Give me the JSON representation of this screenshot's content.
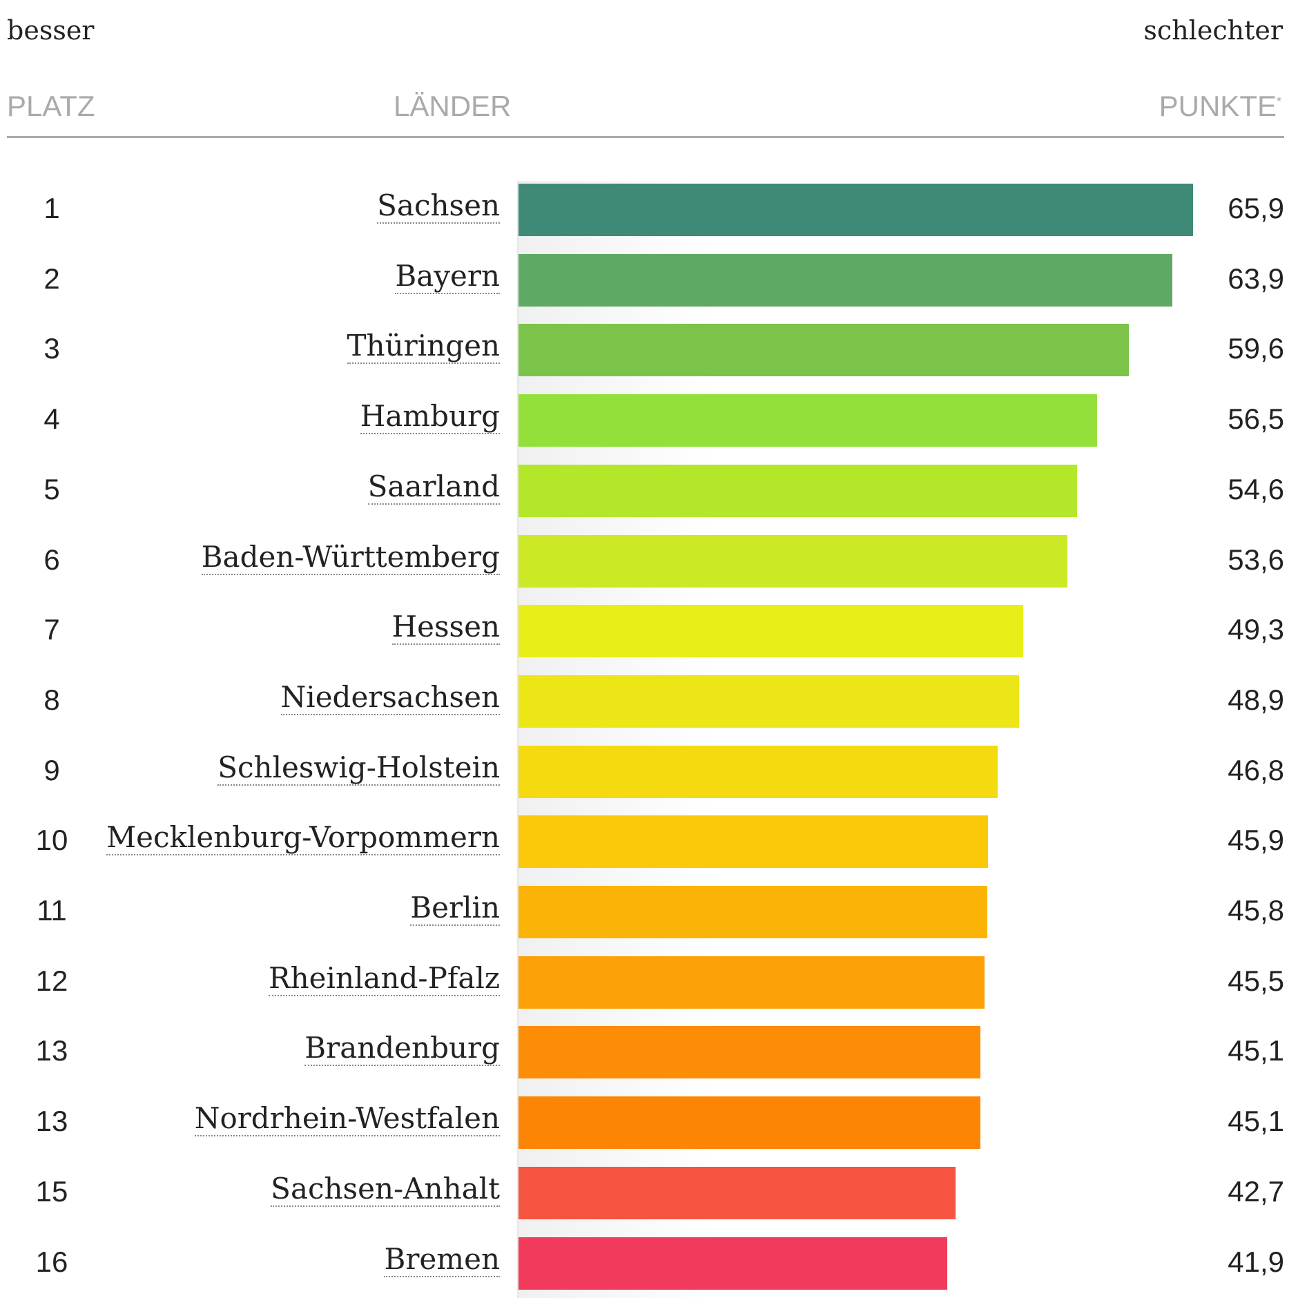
{
  "labels": {
    "better": "besser",
    "worse": "schlechter"
  },
  "headers": {
    "rank": "PLATZ",
    "state": "LÄNDER",
    "points": "PUNKTE",
    "points_note": "*"
  },
  "chart_data": {
    "type": "bar",
    "orientation": "horizontal",
    "xlim": [
      0,
      65.9
    ],
    "ranks": [
      "1",
      "2",
      "3",
      "4",
      "5",
      "6",
      "7",
      "8",
      "9",
      "10",
      "11",
      "12",
      "13",
      "13",
      "15",
      "16"
    ],
    "categories": [
      "Sachsen",
      "Bayern",
      "Thüringen",
      "Hamburg",
      "Saarland",
      "Baden-Württemberg",
      "Hessen",
      "Niedersachsen",
      "Schleswig-Holstein",
      "Mecklenburg-Vorpommern",
      "Berlin",
      "Rheinland-Pfalz",
      "Brandenburg",
      "Nordrhein-Westfalen",
      "Sachsen-Anhalt",
      "Bremen"
    ],
    "values": [
      65.9,
      63.9,
      59.6,
      56.5,
      54.6,
      53.6,
      49.3,
      48.9,
      46.8,
      45.9,
      45.8,
      45.5,
      45.1,
      45.1,
      42.7,
      41.9
    ],
    "value_labels": [
      "65,9",
      "63,9",
      "59,6",
      "56,5",
      "54,6",
      "53,6",
      "49,3",
      "48,9",
      "46,8",
      "45,9",
      "45,8",
      "45,5",
      "45,1",
      "45,1",
      "42,7",
      "41,9"
    ],
    "colors": [
      "#3e8a77",
      "#5fa964",
      "#7cc449",
      "#94e03a",
      "#b4e62a",
      "#cde925",
      "#e8ee18",
      "#ece617",
      "#f5da10",
      "#fbc90a",
      "#fcb308",
      "#fca208",
      "#fd8c06",
      "#fd8506",
      "#f45440",
      "#f23b5c"
    ]
  }
}
